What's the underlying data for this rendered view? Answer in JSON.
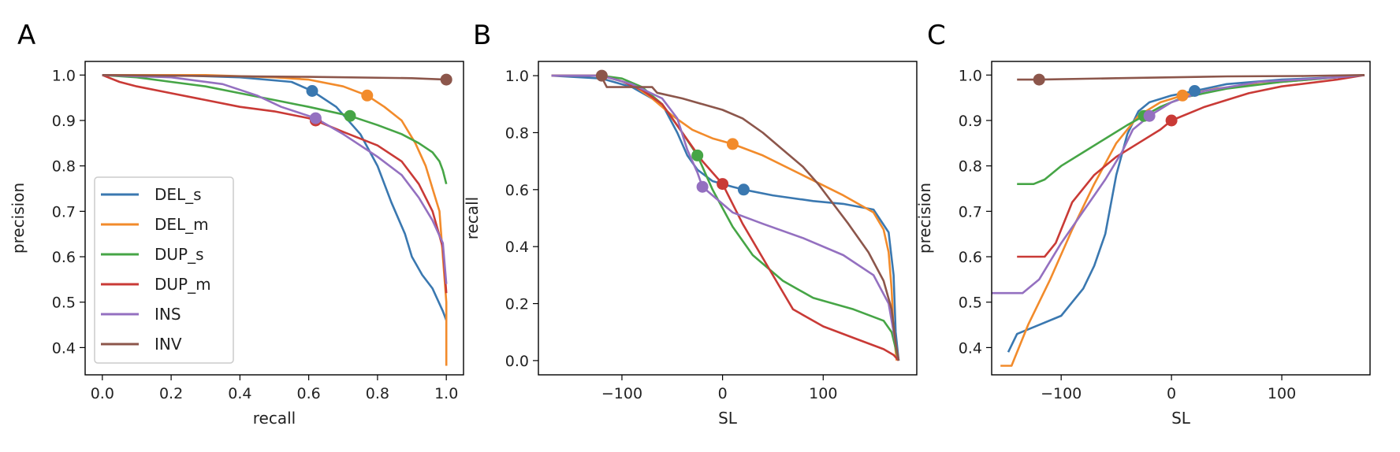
{
  "colors": {
    "DEL_s": "#3a78b0",
    "DEL_m": "#f28b2b",
    "DUP_s": "#46a546",
    "DUP_m": "#c93a36",
    "INS": "#9470c0",
    "INV": "#8c564b"
  },
  "chart_data": [
    {
      "type": "line",
      "panel": "A",
      "xlabel": "recall",
      "ylabel": "precision",
      "xlim": [
        -0.05,
        1.05
      ],
      "ylim": [
        0.34,
        1.03
      ],
      "xticks": [
        0.0,
        0.2,
        0.4,
        0.6,
        0.8,
        1.0
      ],
      "xtick_labels": [
        "0.0",
        "0.2",
        "0.4",
        "0.6",
        "0.8",
        "1.0"
      ],
      "yticks": [
        0.4,
        0.5,
        0.6,
        0.7,
        0.8,
        0.9,
        1.0
      ],
      "ytick_labels": [
        "0.4",
        "0.5",
        "0.6",
        "0.7",
        "0.8",
        "0.9",
        "1.0"
      ],
      "grid": false,
      "legend": "lower-left",
      "series": [
        {
          "name": "DEL_s",
          "x": [
            0.0,
            0.2,
            0.4,
            0.55,
            0.61,
            0.68,
            0.75,
            0.8,
            0.84,
            0.88,
            0.9,
            0.93,
            0.96,
            0.99,
            1.0
          ],
          "y": [
            1.0,
            1.0,
            0.995,
            0.985,
            0.965,
            0.93,
            0.87,
            0.8,
            0.72,
            0.65,
            0.6,
            0.56,
            0.53,
            0.48,
            0.46
          ],
          "marker": [
            0.61,
            0.965
          ]
        },
        {
          "name": "DEL_m",
          "x": [
            0.0,
            0.3,
            0.5,
            0.6,
            0.7,
            0.77,
            0.82,
            0.87,
            0.91,
            0.94,
            0.96,
            0.98,
            0.99,
            1.0,
            1.0
          ],
          "y": [
            1.0,
            1.0,
            0.995,
            0.99,
            0.975,
            0.955,
            0.93,
            0.9,
            0.85,
            0.8,
            0.75,
            0.7,
            0.6,
            0.5,
            0.36
          ],
          "marker": [
            0.77,
            0.955
          ]
        },
        {
          "name": "DUP_s",
          "x": [
            0.0,
            0.1,
            0.2,
            0.3,
            0.4,
            0.5,
            0.6,
            0.72,
            0.8,
            0.87,
            0.92,
            0.96,
            0.98,
            0.99,
            1.0
          ],
          "y": [
            1.0,
            0.995,
            0.985,
            0.975,
            0.96,
            0.945,
            0.93,
            0.91,
            0.89,
            0.87,
            0.85,
            0.83,
            0.81,
            0.79,
            0.76
          ],
          "marker": [
            0.72,
            0.91
          ]
        },
        {
          "name": "DUP_m",
          "x": [
            0.0,
            0.05,
            0.1,
            0.2,
            0.3,
            0.4,
            0.5,
            0.6,
            0.62,
            0.7,
            0.8,
            0.87,
            0.92,
            0.96,
            0.99,
            1.0
          ],
          "y": [
            1.0,
            0.985,
            0.975,
            0.96,
            0.945,
            0.93,
            0.92,
            0.905,
            0.9,
            0.875,
            0.845,
            0.81,
            0.76,
            0.7,
            0.62,
            0.52
          ],
          "marker": [
            0.62,
            0.9
          ]
        },
        {
          "name": "INS",
          "x": [
            0.0,
            0.2,
            0.35,
            0.45,
            0.52,
            0.58,
            0.62,
            0.7,
            0.8,
            0.87,
            0.92,
            0.96,
            0.99,
            1.0
          ],
          "y": [
            1.0,
            0.995,
            0.98,
            0.955,
            0.93,
            0.915,
            0.905,
            0.87,
            0.82,
            0.78,
            0.73,
            0.68,
            0.63,
            0.54
          ],
          "marker": [
            0.62,
            0.905
          ]
        },
        {
          "name": "INV",
          "x": [
            0.0,
            0.3,
            0.6,
            0.9,
            1.0
          ],
          "y": [
            1.0,
            0.998,
            0.996,
            0.993,
            0.99
          ],
          "marker": [
            1.0,
            0.99
          ]
        }
      ]
    },
    {
      "type": "line",
      "panel": "B",
      "xlabel": "SL",
      "ylabel": "recall",
      "xlim": [
        -183,
        193
      ],
      "ylim": [
        -0.05,
        1.05
      ],
      "xticks": [
        -100,
        0,
        100
      ],
      "xtick_labels": [
        "−100",
        "0",
        "100"
      ],
      "yticks": [
        0.0,
        0.2,
        0.4,
        0.6,
        0.8,
        1.0
      ],
      "ytick_labels": [
        "0.0",
        "0.2",
        "0.4",
        "0.6",
        "0.8",
        "1.0"
      ],
      "grid": false,
      "series": [
        {
          "name": "DEL_s",
          "x": [
            -170,
            -120,
            -90,
            -60,
            -45,
            -35,
            -25,
            -10,
            10,
            21,
            50,
            90,
            120,
            150,
            165,
            170,
            172,
            175
          ],
          "y": [
            1.0,
            0.99,
            0.96,
            0.9,
            0.8,
            0.72,
            0.67,
            0.63,
            0.61,
            0.6,
            0.58,
            0.56,
            0.55,
            0.53,
            0.45,
            0.3,
            0.1,
            0.0
          ],
          "marker": [
            21,
            0.6
          ]
        },
        {
          "name": "DEL_m",
          "x": [
            -170,
            -120,
            -90,
            -70,
            -50,
            -30,
            -10,
            10,
            40,
            80,
            120,
            150,
            160,
            165,
            168,
            170,
            173
          ],
          "y": [
            1.0,
            1.0,
            0.97,
            0.92,
            0.86,
            0.81,
            0.78,
            0.76,
            0.72,
            0.65,
            0.58,
            0.52,
            0.46,
            0.38,
            0.25,
            0.1,
            0.0
          ],
          "marker": [
            10,
            0.76
          ]
        },
        {
          "name": "DUP_s",
          "x": [
            -170,
            -120,
            -100,
            -80,
            -60,
            -40,
            -25,
            -10,
            10,
            30,
            60,
            90,
            130,
            160,
            168,
            175
          ],
          "y": [
            1.0,
            1.0,
            0.99,
            0.96,
            0.9,
            0.8,
            0.72,
            0.6,
            0.47,
            0.37,
            0.28,
            0.22,
            0.18,
            0.14,
            0.1,
            0.0
          ],
          "marker": [
            -25,
            0.72
          ]
        },
        {
          "name": "DUP_m",
          "x": [
            -170,
            -120,
            -100,
            -80,
            -60,
            -40,
            -20,
            0,
            20,
            50,
            70,
            100,
            130,
            160,
            170,
            175
          ],
          "y": [
            1.0,
            1.0,
            0.98,
            0.95,
            0.9,
            0.8,
            0.7,
            0.62,
            0.48,
            0.3,
            0.18,
            0.12,
            0.08,
            0.04,
            0.02,
            0.0
          ],
          "marker": [
            0,
            0.62
          ]
        },
        {
          "name": "INS",
          "x": [
            -170,
            -120,
            -90,
            -60,
            -45,
            -35,
            -25,
            -20,
            -10,
            10,
            40,
            80,
            120,
            150,
            165,
            170,
            175
          ],
          "y": [
            1.0,
            1.0,
            0.97,
            0.92,
            0.85,
            0.74,
            0.66,
            0.61,
            0.58,
            0.52,
            0.48,
            0.43,
            0.37,
            0.3,
            0.2,
            0.1,
            0.0
          ],
          "marker": [
            -20,
            0.61
          ]
        },
        {
          "name": "INV",
          "x": [
            -120,
            -118,
            -115,
            -70,
            -65,
            -40,
            -20,
            0,
            20,
            40,
            60,
            80,
            95,
            110,
            125,
            145,
            160,
            168,
            172,
            175
          ],
          "y": [
            1.0,
            0.98,
            0.96,
            0.96,
            0.94,
            0.92,
            0.9,
            0.88,
            0.85,
            0.8,
            0.74,
            0.68,
            0.62,
            0.55,
            0.48,
            0.38,
            0.28,
            0.18,
            0.06,
            0.0
          ],
          "marker": [
            -120,
            1.0
          ]
        }
      ]
    },
    {
      "type": "line",
      "panel": "C",
      "xlabel": "SL",
      "ylabel": "precision",
      "xlim": [
        -163,
        180
      ],
      "ylim": [
        0.34,
        1.03
      ],
      "xticks": [
        -100,
        0,
        100
      ],
      "xtick_labels": [
        "−100",
        "0",
        "100"
      ],
      "yticks": [
        0.4,
        0.5,
        0.6,
        0.7,
        0.8,
        0.9,
        1.0
      ],
      "ytick_labels": [
        "0.4",
        "0.5",
        "0.6",
        "0.7",
        "0.8",
        "0.9",
        "1.0"
      ],
      "grid": false,
      "series": [
        {
          "name": "DEL_s",
          "x": [
            -148,
            -140,
            -120,
            -100,
            -90,
            -80,
            -70,
            -60,
            -50,
            -40,
            -30,
            -20,
            0,
            21,
            50,
            100,
            150,
            175
          ],
          "y": [
            0.39,
            0.43,
            0.45,
            0.47,
            0.5,
            0.53,
            0.58,
            0.65,
            0.78,
            0.87,
            0.92,
            0.94,
            0.955,
            0.965,
            0.98,
            0.99,
            0.995,
            1.0
          ],
          "marker": [
            21,
            0.965
          ]
        },
        {
          "name": "DEL_m",
          "x": [
            -155,
            -145,
            -130,
            -110,
            -90,
            -70,
            -50,
            -30,
            -10,
            10,
            40,
            100,
            150,
            175
          ],
          "y": [
            0.36,
            0.36,
            0.45,
            0.55,
            0.66,
            0.76,
            0.85,
            0.91,
            0.94,
            0.955,
            0.97,
            0.985,
            0.995,
            1.0
          ],
          "marker": [
            10,
            0.955
          ]
        },
        {
          "name": "DUP_s",
          "x": [
            -140,
            -125,
            -115,
            -100,
            -80,
            -60,
            -40,
            -25,
            -10,
            10,
            50,
            100,
            150,
            175
          ],
          "y": [
            0.76,
            0.76,
            0.77,
            0.8,
            0.83,
            0.86,
            0.89,
            0.91,
            0.93,
            0.95,
            0.97,
            0.985,
            0.995,
            1.0
          ],
          "marker": [
            -25,
            0.91
          ]
        },
        {
          "name": "DUP_m",
          "x": [
            -140,
            -115,
            -105,
            -90,
            -70,
            -50,
            -30,
            -10,
            0,
            30,
            70,
            100,
            150,
            175
          ],
          "y": [
            0.6,
            0.6,
            0.63,
            0.72,
            0.78,
            0.82,
            0.85,
            0.88,
            0.9,
            0.93,
            0.96,
            0.975,
            0.99,
            1.0
          ],
          "marker": [
            0,
            0.9
          ]
        },
        {
          "name": "INS",
          "x": [
            -165,
            -135,
            -120,
            -100,
            -80,
            -60,
            -45,
            -35,
            -20,
            0,
            30,
            80,
            150,
            175
          ],
          "y": [
            0.52,
            0.52,
            0.55,
            0.63,
            0.7,
            0.77,
            0.83,
            0.88,
            0.91,
            0.94,
            0.965,
            0.985,
            0.995,
            1.0
          ],
          "marker": [
            -20,
            0.91
          ]
        },
        {
          "name": "INV",
          "x": [
            -140,
            -120,
            -50,
            0,
            50,
            120,
            175
          ],
          "y": [
            0.99,
            0.99,
            0.993,
            0.995,
            0.997,
            0.998,
            1.0
          ],
          "marker": [
            -120,
            0.99
          ]
        }
      ]
    }
  ],
  "panels": [
    "A",
    "B",
    "C"
  ],
  "legend_entries": [
    "DEL_s",
    "DEL_m",
    "DUP_s",
    "DUP_m",
    "INS",
    "INV"
  ]
}
